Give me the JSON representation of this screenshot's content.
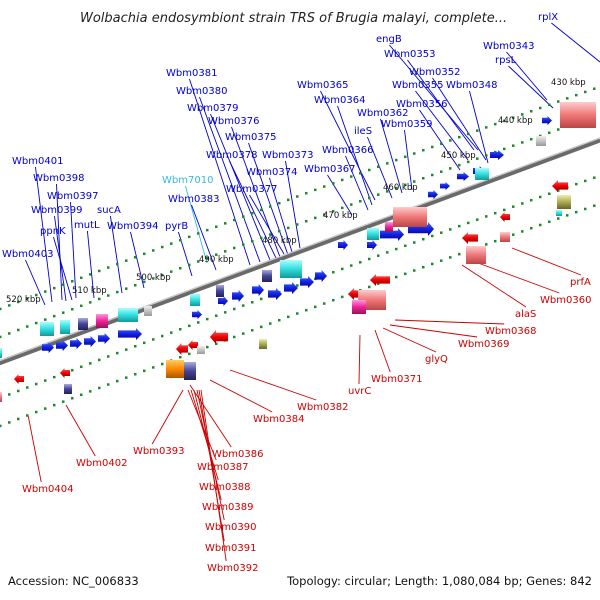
{
  "title": "Wolbachia endosymbiont strain TRS of Brugia malayi, complete...",
  "footer": {
    "accession": "Accession: NC_006833",
    "summary": "Topology: circular; Length: 1,080,084 bp; Genes: 842"
  },
  "colors": {
    "forward_label": "#0000cc",
    "reverse_label": "#cc0000",
    "rna_label": "#33bbdd",
    "backbone": "#777777",
    "tick": "#1d8a2a"
  },
  "kbp_ticks": [
    "430 kbp",
    "440 kbp",
    "450 kbp",
    "460 kbp",
    "470 kbp",
    "480 kbp",
    "490 kbp",
    "500 kbp",
    "510 kbp",
    "520 kbp"
  ],
  "forward_labels": [
    "rplX",
    "Wbm0343",
    "rpsL",
    "engB",
    "Wbm0353",
    "Wbm0352",
    "Wbm0355",
    "Wbm0348",
    "Wbm0356",
    "Wbm0365",
    "Wbm0364",
    "Wbm0362",
    "ileS",
    "Wbm0359",
    "Wbm0366",
    "Wbm0367",
    "Wbm0381",
    "Wbm0380",
    "Wbm0379",
    "Wbm0376",
    "Wbm0375",
    "Wbm0378",
    "Wbm0373",
    "Wbm0374",
    "Wbm0377",
    "Wbm7010",
    "Wbm0383",
    "pyrB",
    "Wbm0401",
    "Wbm0398",
    "Wbm0397",
    "Wbm0399",
    "sucA",
    "ppnK",
    "mutL",
    "Wbm0394",
    "Wbm0403"
  ],
  "reverse_labels": [
    "prfA",
    "Wbm0360",
    "alaS",
    "Wbm0368",
    "Wbm0369",
    "glyQ",
    "Wbm0371",
    "uvrC",
    "Wbm0382",
    "Wbm0384",
    "Wbm0386",
    "Wbm0393",
    "Wbm0387",
    "Wbm0388",
    "Wbm0389",
    "Wbm0390",
    "Wbm0391",
    "Wbm0392",
    "Wbm0402",
    "Wbm0404"
  ]
}
